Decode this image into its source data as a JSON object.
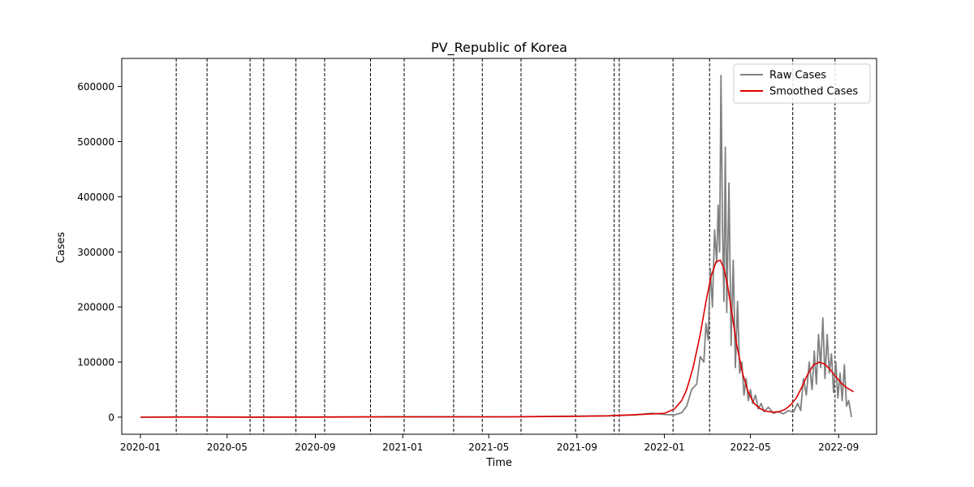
{
  "chart_data": {
    "type": "line",
    "title": "PV_Republic of Korea",
    "xlabel": "Time",
    "ylabel": "Cases",
    "xlim": [
      "2019-12-06",
      "2022-10-24"
    ],
    "ylim": [
      -31000,
      651000
    ],
    "x_ticks": [
      "2020-01",
      "2020-05",
      "2020-09",
      "2021-01",
      "2021-05",
      "2021-09",
      "2022-01",
      "2022-05",
      "2022-09"
    ],
    "y_ticks": [
      0,
      100000,
      200000,
      300000,
      400000,
      500000,
      600000
    ],
    "legend_position": "top-right",
    "grid": false,
    "vertical_dashed_lines": [
      "2020-02-20",
      "2020-04-03",
      "2020-06-02",
      "2020-06-21",
      "2020-08-05",
      "2020-09-14",
      "2020-11-17",
      "2021-01-03",
      "2021-03-13",
      "2021-04-22",
      "2021-06-15",
      "2021-08-30",
      "2021-10-23",
      "2021-10-30",
      "2022-01-13",
      "2022-03-05",
      "2022-06-29",
      "2022-08-27"
    ],
    "series": [
      {
        "name": "Raw Cases",
        "color": "#808080",
        "x": [
          "2020-01-01",
          "2020-03-01",
          "2020-06-01",
          "2020-09-01",
          "2021-01-01",
          "2021-06-01",
          "2021-09-01",
          "2021-10-15",
          "2021-11-20",
          "2021-12-15",
          "2022-01-01",
          "2022-01-15",
          "2022-01-25",
          "2022-02-01",
          "2022-02-08",
          "2022-02-15",
          "2022-02-20",
          "2022-02-25",
          "2022-02-28",
          "2022-03-03",
          "2022-03-06",
          "2022-03-09",
          "2022-03-12",
          "2022-03-15",
          "2022-03-17",
          "2022-03-19",
          "2022-03-21",
          "2022-03-23",
          "2022-03-25",
          "2022-03-27",
          "2022-03-29",
          "2022-04-01",
          "2022-04-04",
          "2022-04-07",
          "2022-04-10",
          "2022-04-13",
          "2022-04-16",
          "2022-04-19",
          "2022-04-22",
          "2022-04-25",
          "2022-04-28",
          "2022-05-01",
          "2022-05-04",
          "2022-05-08",
          "2022-05-12",
          "2022-05-16",
          "2022-05-20",
          "2022-05-26",
          "2022-06-02",
          "2022-06-09",
          "2022-06-16",
          "2022-06-23",
          "2022-06-30",
          "2022-07-06",
          "2022-07-10",
          "2022-07-14",
          "2022-07-18",
          "2022-07-22",
          "2022-07-26",
          "2022-07-29",
          "2022-08-01",
          "2022-08-04",
          "2022-08-07",
          "2022-08-10",
          "2022-08-13",
          "2022-08-16",
          "2022-08-19",
          "2022-08-22",
          "2022-08-25",
          "2022-08-28",
          "2022-08-31",
          "2022-09-03",
          "2022-09-06",
          "2022-09-09",
          "2022-09-12",
          "2022-09-15",
          "2022-09-19"
        ],
        "values": [
          0,
          500,
          100,
          200,
          800,
          500,
          2000,
          2500,
          4000,
          7000,
          5000,
          4000,
          8000,
          20000,
          50000,
          60000,
          110000,
          100000,
          170000,
          140000,
          270000,
          200000,
          340000,
          280000,
          385000,
          300000,
          620000,
          350000,
          210000,
          490000,
          190000,
          425000,
          130000,
          285000,
          90000,
          210000,
          80000,
          100000,
          40000,
          70000,
          30000,
          50000,
          25000,
          40000,
          15000,
          25000,
          10000,
          18000,
          7000,
          10000,
          6000,
          12000,
          9000,
          25000,
          12000,
          70000,
          40000,
          100000,
          50000,
          120000,
          60000,
          150000,
          90000,
          180000,
          70000,
          150000,
          80000,
          115000,
          45000,
          100000,
          35000,
          80000,
          30000,
          95000,
          20000,
          30000,
          0
        ]
      },
      {
        "name": "Smoothed Cases",
        "color": "#e00000",
        "x": [
          "2020-01-01",
          "2020-03-01",
          "2020-06-01",
          "2020-09-01",
          "2021-01-01",
          "2021-06-01",
          "2021-09-01",
          "2021-10-15",
          "2021-11-15",
          "2021-12-15",
          "2022-01-01",
          "2022-01-15",
          "2022-01-25",
          "2022-02-01",
          "2022-02-10",
          "2022-02-20",
          "2022-02-28",
          "2022-03-07",
          "2022-03-14",
          "2022-03-20",
          "2022-03-25",
          "2022-03-30",
          "2022-04-05",
          "2022-04-12",
          "2022-04-20",
          "2022-04-28",
          "2022-05-06",
          "2022-05-14",
          "2022-05-22",
          "2022-06-01",
          "2022-06-10",
          "2022-06-18",
          "2022-06-26",
          "2022-07-04",
          "2022-07-12",
          "2022-07-20",
          "2022-07-28",
          "2022-08-05",
          "2022-08-13",
          "2022-08-21",
          "2022-08-29",
          "2022-09-06",
          "2022-09-14",
          "2022-09-22"
        ],
        "values": [
          0,
          200,
          100,
          200,
          500,
          600,
          1500,
          2500,
          4000,
          6000,
          7000,
          15000,
          30000,
          50000,
          90000,
          150000,
          210000,
          255000,
          282000,
          285000,
          270000,
          240000,
          190000,
          130000,
          80000,
          45000,
          25000,
          16000,
          11000,
          9000,
          10000,
          14000,
          22000,
          35000,
          55000,
          78000,
          95000,
          100000,
          96000,
          85000,
          72000,
          60000,
          52000,
          46000
        ]
      }
    ]
  }
}
